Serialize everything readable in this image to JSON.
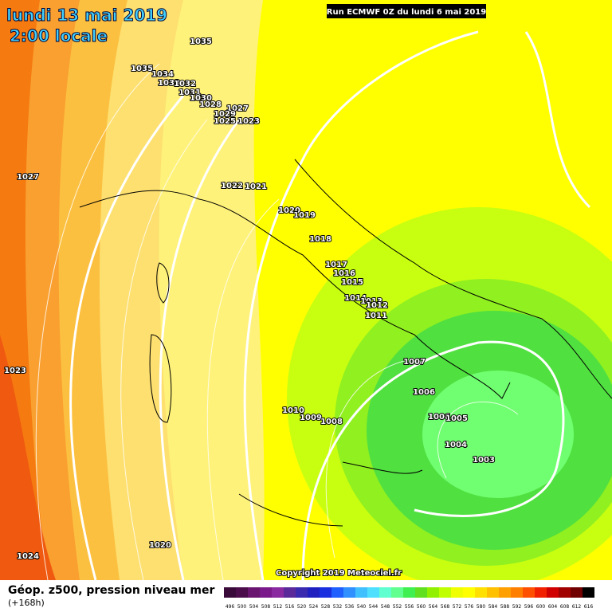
{
  "header": {
    "date": "lundi 13 mai 2019",
    "time": "2:00 locale",
    "run": "Run ECMWF 0Z du lundi 6 mai 2019"
  },
  "copyright": "Copyright 2019 Meteociel.fr",
  "footer": {
    "title": "Géop. z500, pression niveau mer",
    "lead": "(+168h)"
  },
  "pressure_labels": [
    "1035",
    "1035",
    "1034",
    "1033",
    "1032",
    "1031",
    "1030",
    "1028",
    "1027",
    "1029",
    "1025",
    "1023",
    "1027",
    "1022",
    "1021",
    "1020",
    "1019",
    "1018",
    "1017",
    "1016",
    "1015",
    "1014",
    "1013",
    "1012",
    "1011",
    "1007",
    "1006",
    "1006",
    "1005",
    "1004",
    "1003",
    "1010",
    "1009",
    "1008",
    "1023",
    "1024",
    "1020"
  ],
  "colorbar": {
    "labels": [
      "496",
      "500",
      "504",
      "508",
      "512",
      "516",
      "520",
      "524",
      "528",
      "532",
      "536",
      "540",
      "544",
      "548",
      "552",
      "556",
      "560",
      "564",
      "568",
      "572",
      "576",
      "580",
      "584",
      "588",
      "592",
      "596",
      "600",
      "604",
      "608",
      "612",
      "616"
    ],
    "colors": [
      "#3a0a3a",
      "#4b0d4b",
      "#6a1670",
      "#7a1a8a",
      "#8a2aa0",
      "#5a2a9a",
      "#3a2ab0",
      "#2020c0",
      "#1a30e0",
      "#2060ff",
      "#3090ff",
      "#40c0ff",
      "#50e0ff",
      "#60ffd0",
      "#60ff90",
      "#40f050",
      "#60e020",
      "#90f000",
      "#c0ff00",
      "#f0ff00",
      "#ffff00",
      "#ffe000",
      "#ffc000",
      "#ffa000",
      "#ff8000",
      "#ff5000",
      "#f02000",
      "#d00000",
      "#a00000",
      "#700000",
      "#000000"
    ]
  }
}
